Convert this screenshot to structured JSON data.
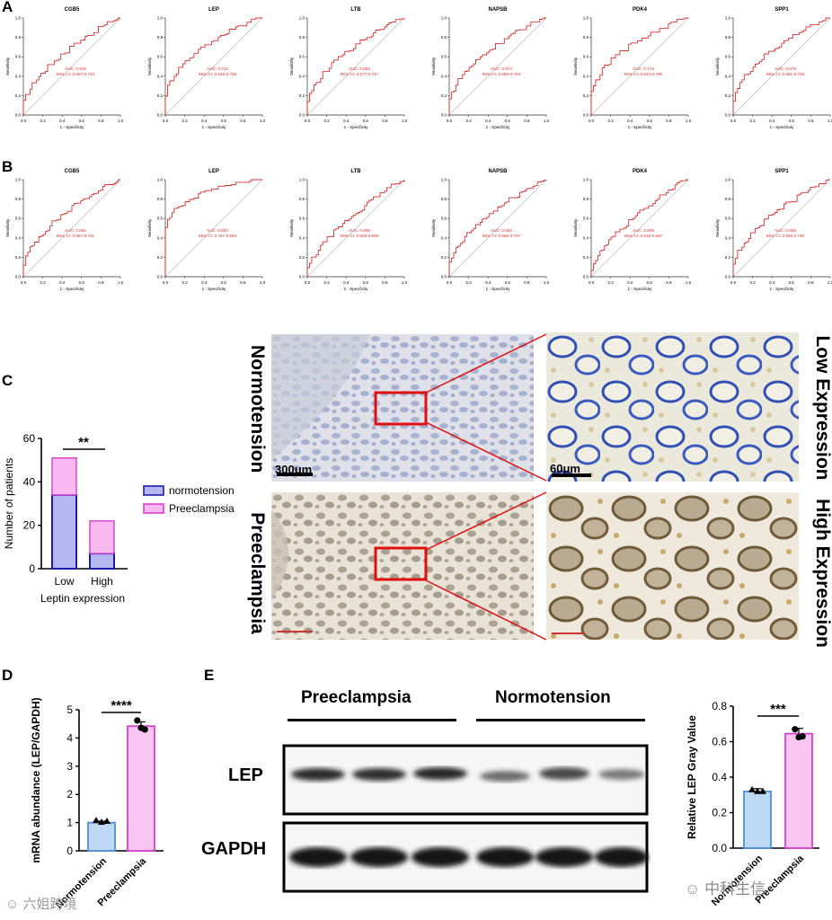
{
  "panels": {
    "a": "A",
    "b": "B",
    "c": "C",
    "d": "D",
    "e": "E"
  },
  "roc": {
    "xlabel": "1 - Specificity",
    "ylabel": "Sensitivity",
    "ticks": [
      "0.0",
      "0.2",
      "0.4",
      "0.6",
      "0.8",
      "1.0"
    ],
    "row_a": [
      {
        "gene": "CGB5",
        "auc": "AUC: 0.648",
        "ci": "95% CI: 0.557-0.734"
      },
      {
        "gene": "LEP",
        "auc": "AUC: 0.712",
        "ci": "95% CI: 0.626-0.785"
      },
      {
        "gene": "LTB",
        "auc": "AUC: 0.663",
        "ci": "95% CI: 0.577-0.747"
      },
      {
        "gene": "NAPSB",
        "auc": "AUC: 0.674",
        "ci": "95% CI: 0.589-0.753"
      },
      {
        "gene": "PDK4",
        "auc": "AUC: 0.718",
        "ci": "95% CI: 0.634-0.795"
      },
      {
        "gene": "SPP1",
        "auc": "AUC: 0.679",
        "ci": "95% CI: 0.591-0.765"
      }
    ],
    "row_b": [
      {
        "gene": "CGB5",
        "auc": "AUC: 0.656",
        "ci": "95% CI: 0.567-0.741"
      },
      {
        "gene": "LEP",
        "auc": "AUC: 0.850",
        "ci": "95% CI: 0.787-0.904"
      },
      {
        "gene": "LTB",
        "auc": "AUC: 0.606",
        "ci": "95% CI: 0.526-0.699"
      },
      {
        "gene": "NAPSB",
        "auc": "AUC: 0.651",
        "ci": "95% CI: 0.566-0.737"
      },
      {
        "gene": "PDK4",
        "auc": "AUC: 0.609",
        "ci": "95% CI: 0.516-0.697"
      },
      {
        "gene": "SPP1",
        "auc": "AUC: 0.658",
        "ci": "95% CI: 0.565-0.740"
      }
    ]
  },
  "chart_data": [
    {
      "type": "bar",
      "stacked": true,
      "categories": [
        "Low",
        "High"
      ],
      "series": [
        {
          "name": "normotension",
          "values": [
            34,
            7
          ],
          "color": "#b4b7f0",
          "edge": "#1c1ca8"
        },
        {
          "name": "Preeclampsia",
          "values": [
            17,
            15
          ],
          "color": "#f7b9ef",
          "edge": "#d93fcf"
        }
      ],
      "xlabel": "Leptin expression",
      "ylabel": "Number of patients",
      "ylim": [
        0,
        60
      ],
      "yticks": [
        "0",
        "20",
        "40",
        "60"
      ],
      "significance": "**",
      "legend": "right"
    },
    {
      "type": "bar",
      "categories": [
        "Normotension",
        "Preeclampsia"
      ],
      "values": [
        1.0,
        4.42
      ],
      "errors": [
        0.05,
        0.15
      ],
      "points": [
        [
          1.08,
          1.02,
          1.05
        ],
        [
          4.62,
          4.36,
          4.3
        ]
      ],
      "colors": [
        "#bfd9f5",
        "#f9c6f1"
      ],
      "edges": [
        "#4a90d9",
        "#d93fcf"
      ],
      "ylabel": "mRNA abundance (LEP/GAPDH)",
      "ylim": [
        0,
        5
      ],
      "yticks": [
        "0",
        "1",
        "2",
        "3",
        "4",
        "5"
      ],
      "significance": "****"
    },
    {
      "type": "bar",
      "categories": [
        "Normotension",
        "Preeclampsia"
      ],
      "values": [
        0.32,
        0.645
      ],
      "errors": [
        0.015,
        0.03
      ],
      "points": [
        [
          0.33,
          0.32,
          0.32
        ],
        [
          0.67,
          0.625,
          0.63
        ]
      ],
      "colors": [
        "#bfd9f5",
        "#f9c6f1"
      ],
      "edges": [
        "#4a90d9",
        "#d93fcf"
      ],
      "ylabel": "Relative LEP Gray Value",
      "ylim": [
        0,
        0.8
      ],
      "yticks": [
        "0.0",
        "0.2",
        "0.4",
        "0.6",
        "0.8"
      ],
      "significance": "***"
    }
  ],
  "histology": {
    "row1": "Normotension",
    "row2": "Preeclampsia",
    "right1": "Low Expression",
    "right2": "High Expression",
    "scale1": "300μm",
    "scale2": "60μm"
  },
  "blot": {
    "group1": "Preeclampsia",
    "group2": "Normotension",
    "row1": "LEP",
    "row2": "GAPDH"
  },
  "watermarks": {
    "left": "六姐跨境",
    "right": "中科生信"
  }
}
